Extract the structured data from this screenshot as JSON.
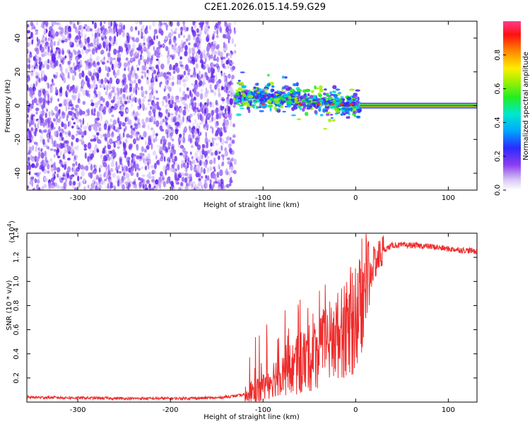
{
  "title": "C2E1.2026.015.14.59.G29",
  "chart_data": [
    {
      "type": "heatmap",
      "name": "spectrogram",
      "xlabel": "Height of straight line (km)",
      "ylabel": "Frequency (Hz)",
      "xlim": [
        -355,
        131
      ],
      "ylim": [
        -50,
        50
      ],
      "xticks": [
        -300,
        -200,
        -100,
        0,
        100
      ],
      "yticks": [
        -40,
        -20,
        0,
        20,
        40
      ],
      "x_tick_labels": [
        "-300",
        "-200",
        "-100",
        "0",
        "100"
      ],
      "y_tick_labels": [
        "-40",
        "-20",
        "0",
        "20",
        "40"
      ],
      "colorbar": {
        "label": "Normalized spectral amplitude",
        "range": [
          0,
          1
        ],
        "ticks": [
          0.0,
          0.2,
          0.4,
          0.6,
          0.8
        ],
        "tick_labels": [
          "0.0",
          "0.2",
          "0.4",
          "0.6",
          "0.8"
        ]
      },
      "regions": [
        {
          "name": "noise-floor",
          "x_range": [
            -355,
            -130
          ],
          "freq_range": [
            -50,
            50
          ],
          "amplitude": 0.15
        },
        {
          "name": "scattered-signal",
          "x_range": [
            -130,
            5
          ],
          "center_freq_start": 6,
          "center_freq_end": 0,
          "amplitude": 0.45
        },
        {
          "name": "clean-carrier",
          "x_range": [
            5,
            131
          ],
          "freq": 0,
          "amplitude": 0.95
        }
      ]
    },
    {
      "type": "line",
      "name": "snr",
      "xlabel": "Height of straight line (km)",
      "ylabel": "SNR (10 * v/v)",
      "y_exponent_label": "(x10",
      "y_exponent_value": "4",
      "y_exponent_close": ")",
      "xlim": [
        -355,
        131
      ],
      "ylim": [
        0,
        1.4
      ],
      "xticks": [
        -300,
        -200,
        -100,
        0,
        100
      ],
      "yticks": [
        0.2,
        0.4,
        0.6,
        0.8,
        1.0,
        1.2,
        1.4
      ],
      "x_tick_labels": [
        "-300",
        "-200",
        "-100",
        "0",
        "100"
      ],
      "y_tick_labels": [
        "0.2",
        "0.4",
        "0.6",
        "0.8",
        "1.0",
        "1.2",
        "1.4"
      ],
      "series": [
        {
          "name": "SNR",
          "color": "#ee2b2b",
          "x": [
            -355,
            -300,
            -250,
            -200,
            -150,
            -120,
            -100,
            -90,
            -80,
            -70,
            -60,
            -50,
            -40,
            -30,
            -20,
            -10,
            0,
            10,
            20,
            30,
            40,
            60,
            80,
            100,
            131
          ],
          "y": [
            0.04,
            0.035,
            0.03,
            0.03,
            0.035,
            0.06,
            0.12,
            0.2,
            0.24,
            0.27,
            0.3,
            0.36,
            0.42,
            0.48,
            0.55,
            0.6,
            0.65,
            0.95,
            1.15,
            1.26,
            1.3,
            1.3,
            1.29,
            1.27,
            1.25
          ]
        }
      ]
    }
  ]
}
